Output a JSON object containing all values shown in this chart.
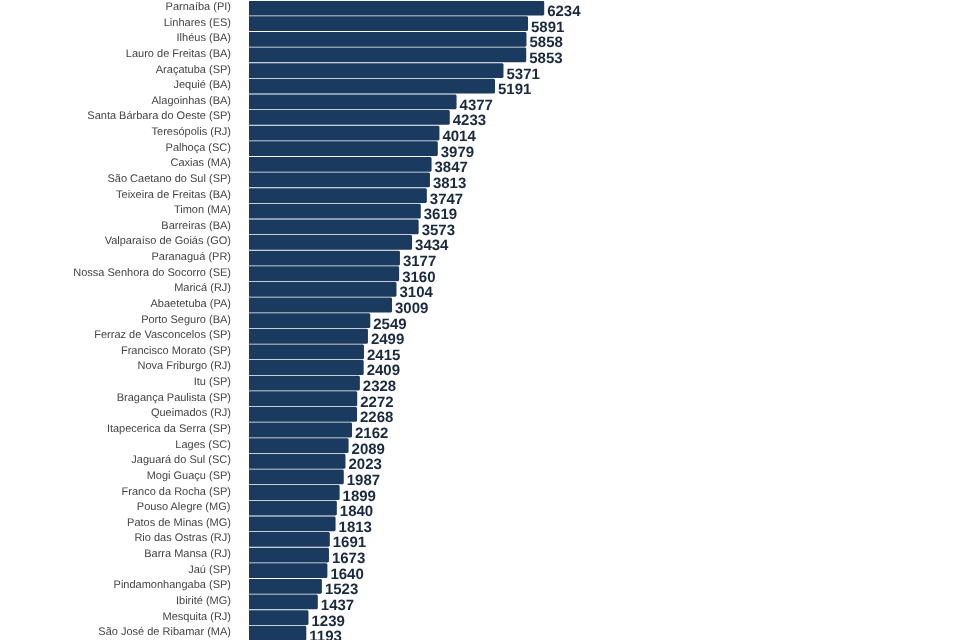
{
  "chart_data": {
    "type": "bar",
    "orientation": "horizontal",
    "tick_labels": "y",
    "data_labels": true,
    "categories": [
      "Parnaíba (PI)",
      "Linhares (ES)",
      "Ilhéus (BA)",
      "Lauro de Freitas (BA)",
      "Araçatuba (SP)",
      "Jequié (BA)",
      "Alagoinhas (BA)",
      "Santa Bárbara do Oeste (SP)",
      "Teresópolis (RJ)",
      "Palhoça (SC)",
      "Caxias (MA)",
      "São Caetano do Sul (SP)",
      "Teixeira de Freitas (BA)",
      "Timon (MA)",
      "Barreiras (BA)",
      "Valparaíso de Goiás (GO)",
      "Paranaguá (PR)",
      "Nossa Senhora do Socorro (SE)",
      "Maricá (RJ)",
      "Abaetetuba (PA)",
      "Porto Seguro (BA)",
      "Ferraz de Vasconcelos (SP)",
      "Francisco Morato (SP)",
      "Nova Friburgo (RJ)",
      "Itu (SP)",
      "Bragança Paulista (SP)",
      "Queimados (RJ)",
      "Itapecerica da Serra (SP)",
      "Lages (SC)",
      "Jaguará do Sul (SC)",
      "Mogi Guaçu (SP)",
      "Franco da Rocha (SP)",
      "Pouso Alegre (MG)",
      "Patos de Minas (MG)",
      "Rio das Ostras (RJ)",
      "Barra Mansa (RJ)",
      "Jaú (SP)",
      "Pindamonhangaba (SP)",
      "Ibirité (MG)",
      "Mesquita (RJ)",
      "São José de Ribamar (MA)"
    ],
    "values": [
      6234,
      5891,
      5858,
      5853,
      5371,
      5191,
      4377,
      4233,
      4014,
      3979,
      3847,
      3813,
      3747,
      3619,
      3573,
      3434,
      3177,
      3160,
      3104,
      3009,
      2549,
      2499,
      2415,
      2409,
      2328,
      2272,
      2268,
      2162,
      2089,
      2023,
      1987,
      1899,
      1840,
      1813,
      1691,
      1673,
      1640,
      1523,
      1437,
      1239,
      1193
    ],
    "color": "#1b3a5f"
  }
}
